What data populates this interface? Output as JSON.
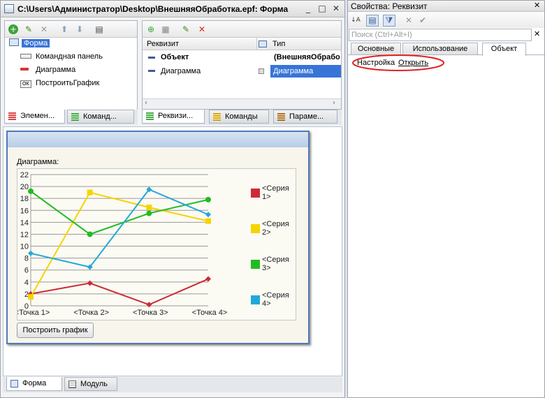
{
  "main_window": {
    "title": "C:\\Users\\Администратор\\Desktop\\ВнешняяОбработка.epf: Форма",
    "controls": [
      "_",
      "□",
      "✕"
    ]
  },
  "elements_panel": {
    "items": [
      {
        "label": "Форма",
        "icon": "form-icon",
        "selected": true
      },
      {
        "label": "Командная панель",
        "icon": "command-bar-icon"
      },
      {
        "label": "Диаграмма",
        "icon": "chart-icon"
      },
      {
        "label": "ПостроитьГрафик",
        "icon": "button-ok-icon",
        "icon_text": "OK"
      }
    ],
    "tabs": [
      "Элемен...",
      "Команд..."
    ]
  },
  "attributes_panel": {
    "col_attr": "Реквизит",
    "col_type": "Тип",
    "rows": [
      {
        "name": "Объект",
        "type": "(ВнешняяОбрабо",
        "bold": true
      },
      {
        "name": "Диаграмма",
        "type": "Диаграмма",
        "selected": true
      }
    ],
    "tabs": [
      "Реквизи...",
      "Команды",
      "Параме..."
    ]
  },
  "form_preview": {
    "chart_caption": "Диаграмма:",
    "button_label": "Построить график"
  },
  "bottom_tabs": [
    "Форма",
    "Модуль"
  ],
  "properties": {
    "title": "Свойства: Реквизит",
    "search_placeholder": "Поиск (Ctrl+Alt+I)",
    "tabs": [
      "Основные",
      "Использование",
      "Объект"
    ],
    "setting_label": "Настройка",
    "setting_link": "Открыть"
  },
  "chart_data": {
    "type": "line",
    "categories": [
      "<Точка 1>",
      "<Точка 2>",
      "<Точка 3>",
      "<Точка 4>"
    ],
    "ylim": [
      0,
      22
    ],
    "yticks": [
      0,
      2,
      4,
      6,
      8,
      10,
      12,
      14,
      16,
      18,
      20,
      22
    ],
    "grid": true,
    "legend_position": "right",
    "series": [
      {
        "name": "<Серия 1>",
        "color": "#cc2b36",
        "marker": "diamond",
        "values": [
          2,
          3.8,
          0.2,
          4.5
        ]
      },
      {
        "name": "<Серия 2>",
        "color": "#f5d400",
        "marker": "square",
        "values": [
          1.5,
          19,
          16.5,
          14.2
        ]
      },
      {
        "name": "<Серия 3>",
        "color": "#22bb22",
        "marker": "circle",
        "values": [
          19.2,
          12,
          15.5,
          17.8
        ]
      },
      {
        "name": "<Серия 4>",
        "color": "#22a8d8",
        "marker": "diamond",
        "values": [
          8.8,
          6.5,
          19.5,
          15.3
        ]
      }
    ]
  },
  "colors": {
    "selection": "#3874d8",
    "link_circle": "#e02020"
  }
}
